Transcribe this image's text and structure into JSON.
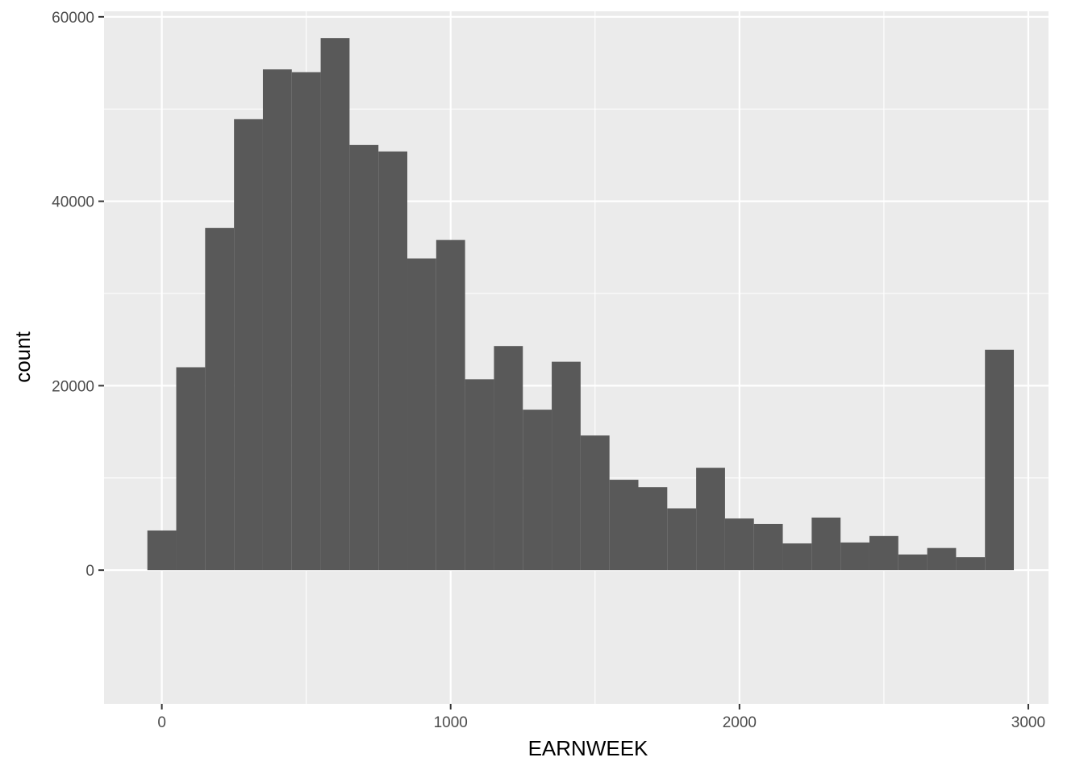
{
  "chart_data": {
    "type": "bar",
    "subtype": "histogram",
    "title": "",
    "xlabel": "EARNWEEK",
    "ylabel": "count",
    "xlim": [
      -200,
      3070
    ],
    "ylim": [
      -14500,
      60600
    ],
    "x_ticks": [
      0,
      1000,
      2000,
      3000
    ],
    "x_tick_labels": [
      "0",
      "1000",
      "2000",
      "3000"
    ],
    "y_ticks": [
      0,
      20000,
      40000,
      60000
    ],
    "y_tick_labels": [
      "0",
      "20000",
      "40000",
      "60000"
    ],
    "grid": true,
    "legend": "none",
    "bins": [
      {
        "x0": -50,
        "x1": 50,
        "count": 4300
      },
      {
        "x0": 50,
        "x1": 150,
        "count": 22000
      },
      {
        "x0": 150,
        "x1": 250,
        "count": 37100
      },
      {
        "x0": 250,
        "x1": 350,
        "count": 48900
      },
      {
        "x0": 350,
        "x1": 450,
        "count": 54300
      },
      {
        "x0": 450,
        "x1": 550,
        "count": 54000
      },
      {
        "x0": 550,
        "x1": 650,
        "count": 57700
      },
      {
        "x0": 650,
        "x1": 750,
        "count": 46100
      },
      {
        "x0": 750,
        "x1": 850,
        "count": 45400
      },
      {
        "x0": 850,
        "x1": 950,
        "count": 33800
      },
      {
        "x0": 950,
        "x1": 1050,
        "count": 35800
      },
      {
        "x0": 1050,
        "x1": 1150,
        "count": 20700
      },
      {
        "x0": 1150,
        "x1": 1250,
        "count": 24300
      },
      {
        "x0": 1250,
        "x1": 1350,
        "count": 17400
      },
      {
        "x0": 1350,
        "x1": 1450,
        "count": 22600
      },
      {
        "x0": 1450,
        "x1": 1550,
        "count": 14600
      },
      {
        "x0": 1550,
        "x1": 1650,
        "count": 9800
      },
      {
        "x0": 1650,
        "x1": 1750,
        "count": 9000
      },
      {
        "x0": 1750,
        "x1": 1850,
        "count": 6700
      },
      {
        "x0": 1850,
        "x1": 1950,
        "count": 11100
      },
      {
        "x0": 1950,
        "x1": 2050,
        "count": 5600
      },
      {
        "x0": 2050,
        "x1": 2150,
        "count": 5000
      },
      {
        "x0": 2150,
        "x1": 2250,
        "count": 2900
      },
      {
        "x0": 2250,
        "x1": 2350,
        "count": 5700
      },
      {
        "x0": 2350,
        "x1": 2450,
        "count": 3000
      },
      {
        "x0": 2450,
        "x1": 2550,
        "count": 3700
      },
      {
        "x0": 2550,
        "x1": 2650,
        "count": 1700
      },
      {
        "x0": 2650,
        "x1": 2750,
        "count": 2400
      },
      {
        "x0": 2750,
        "x1": 2850,
        "count": 1400
      },
      {
        "x0": 2850,
        "x1": 2950,
        "count": 23900
      }
    ],
    "colors": {
      "panel_background": "#ebebeb",
      "grid_major": "#ffffff",
      "bar_fill": "#595959",
      "tick_text": "#4d4d4d",
      "axis_title": "#000000"
    }
  }
}
